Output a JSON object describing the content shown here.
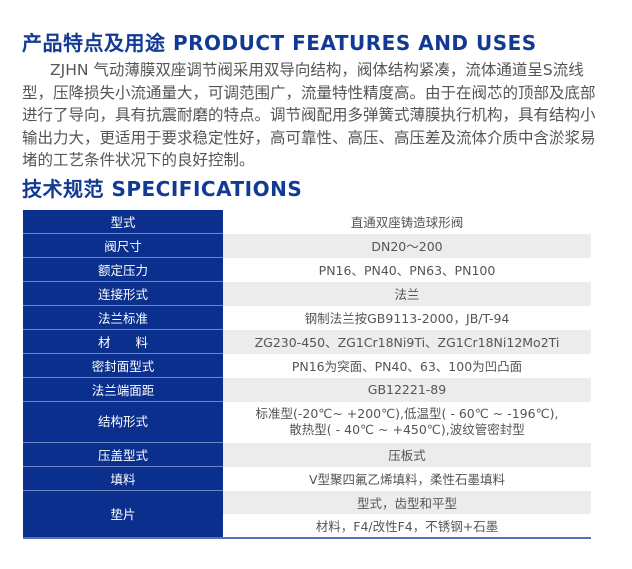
{
  "features": {
    "heading": "产品特点及用途 PRODUCT FEATURES AND USES",
    "paragraph": "ZJHN  气动薄膜双座调节阀采用双导向结构，阀体结构紧凑，流体通道呈S流线型，压降损失小流通量大，可调范围广，流量特性精度高。由于在阀芯的顶部及底部进行了导向，具有抗震耐磨的特点。调节阀配用多弹簧式薄膜执行机构，具有结构小输出力大，更适用于要求稳定性好，高可靠性、高压、高压差及流体介质中含淤浆易堵的工艺条件状况下的良好控制。"
  },
  "specifications": {
    "heading": "技术规范 SPECIFICATIONS",
    "rows": [
      {
        "label": "型式",
        "value": "直通双座铸造球形阀"
      },
      {
        "label": "阀尺寸",
        "value": "DN20～200"
      },
      {
        "label": "额定压力",
        "value": "PN16、PN40、PN63、PN100"
      },
      {
        "label": "连接形式",
        "value": "法兰"
      },
      {
        "label": "法兰标准",
        "value": "钢制法兰按GB9113-2000，JB/T-94"
      },
      {
        "label": "材　　料",
        "value": "ZG230-450、ZG1Cr18Ni9Ti、ZG1Cr18Ni12Mo2Ti"
      },
      {
        "label": "密封面型式",
        "value": "PN16为突面、PN40、63、100为凹凸面"
      },
      {
        "label": "法兰端面距",
        "value": "GB12221-89"
      },
      {
        "label": "结构形式",
        "value_line1": "标准型(-20℃~ +200℃),低温型( - 60℃ ~ -196℃),",
        "value_line2": "散热型( - 40℃ ~ +450℃),波纹管密封型"
      },
      {
        "label": "压盖型式",
        "value": "压板式"
      },
      {
        "label": "填料",
        "value": "V型聚四氟乙烯填料，柔性石墨填料"
      },
      {
        "label": "垫片",
        "value_line1": "型式，齿型和平型",
        "value_line2": "材料，F4/改性F4，不锈钢+石墨"
      }
    ]
  },
  "colors": {
    "heading": "#123a94",
    "label_cell": "#0b2f8c",
    "stripe": "#ececec"
  }
}
